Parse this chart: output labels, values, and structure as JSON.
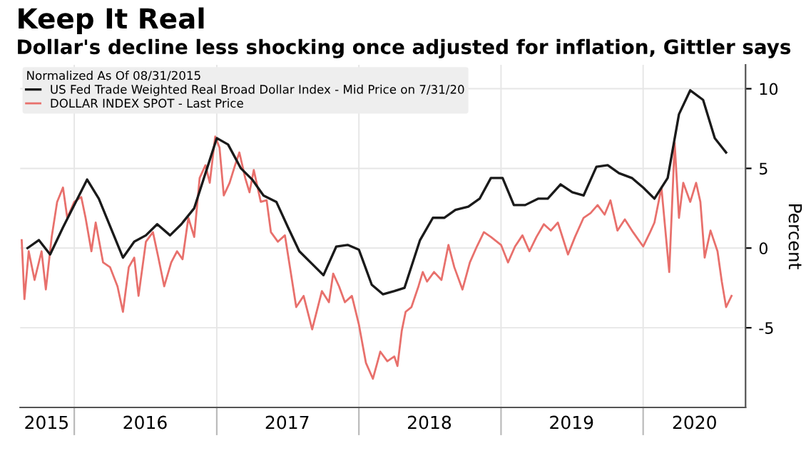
{
  "chart_data": {
    "type": "line",
    "title": "Keep It Real",
    "subtitle": "Dollar's decline less shocking once adjusted for inflation, Gittler says",
    "ylabel": "Percent",
    "legend_title": "Normalized As Of 08/31/2015",
    "legend": "top left",
    "grid": true,
    "xlim": [
      "2015-08-15",
      "2020-09-20"
    ],
    "ylim": [
      -10,
      11.5
    ],
    "yticks": [
      -5,
      0,
      5,
      10
    ],
    "xticks": [
      {
        "value": "2015-10-22",
        "label": "2015"
      },
      {
        "value": "2016-01-01",
        "label": null
      },
      {
        "value": "2016-07-01",
        "label": "2016"
      },
      {
        "value": "2017-01-01",
        "label": null
      },
      {
        "value": "2017-07-01",
        "label": "2017"
      },
      {
        "value": "2018-01-01",
        "label": null
      },
      {
        "value": "2018-07-01",
        "label": "2018"
      },
      {
        "value": "2019-01-01",
        "label": null
      },
      {
        "value": "2019-07-01",
        "label": "2019"
      },
      {
        "value": "2020-01-01",
        "label": null
      },
      {
        "value": "2020-05-12",
        "label": "2020"
      }
    ],
    "series": [
      {
        "name": "US Fed Trade Weighted Real Broad Dollar Index - Mid Price on 7/31/20",
        "color": "#1a1a1a",
        "x": [
          "2015-09-03",
          "2015-10-02",
          "2015-10-31",
          "2015-12-03",
          "2016-02-03",
          "2016-03-04",
          "2016-05-05",
          "2016-06-03",
          "2016-07-03",
          "2016-08-01",
          "2016-09-03",
          "2016-10-02",
          "2016-11-04",
          "2016-12-03",
          "2017-01-01",
          "2017-01-30",
          "2017-03-04",
          "2017-04-02",
          "2017-05-01",
          "2017-06-03",
          "2017-07-03",
          "2017-08-01",
          "2017-09-03",
          "2017-10-02",
          "2017-11-04",
          "2017-12-03",
          "2018-01-01",
          "2018-02-03",
          "2018-03-04",
          "2018-04-02",
          "2018-04-28",
          "2018-06-07",
          "2018-07-10",
          "2018-08-08",
          "2018-09-06",
          "2018-10-09",
          "2018-11-07",
          "2018-12-06",
          "2019-01-05",
          "2019-02-03",
          "2019-03-04",
          "2019-04-06",
          "2019-05-01",
          "2019-06-03",
          "2019-07-03",
          "2019-08-01",
          "2019-09-03",
          "2019-10-02",
          "2019-10-31",
          "2019-12-03",
          "2020-01-01",
          "2020-01-30",
          "2020-03-04",
          "2020-04-02",
          "2020-05-01",
          "2020-06-03",
          "2020-07-03",
          "2020-08-01"
        ],
        "values": [
          0.0,
          0.5,
          -0.4,
          1.3,
          4.3,
          3.1,
          -0.6,
          0.4,
          0.8,
          1.5,
          0.8,
          1.5,
          2.5,
          4.7,
          6.9,
          6.5,
          5.0,
          4.3,
          3.3,
          2.9,
          1.3,
          -0.2,
          -1.0,
          -1.7,
          0.1,
          0.2,
          -0.1,
          -2.3,
          -2.9,
          -2.7,
          -2.5,
          0.5,
          1.9,
          1.9,
          2.4,
          2.6,
          3.1,
          4.4,
          4.4,
          2.7,
          2.7,
          3.1,
          3.1,
          4.0,
          3.5,
          3.3,
          5.1,
          5.2,
          4.7,
          4.4,
          3.8,
          3.1,
          4.4,
          8.4,
          9.9,
          9.3,
          6.9,
          6.0
        ]
      },
      {
        "name": "DOLLAR INDEX SPOT - Last Price",
        "color": "#e8706c",
        "x": [
          "2015-08-19",
          "2015-08-26",
          "2015-09-06",
          "2015-09-21",
          "2015-10-09",
          "2015-10-20",
          "2015-11-04",
          "2015-11-18",
          "2015-12-03",
          "2015-12-14",
          "2016-01-01",
          "2016-01-19",
          "2016-01-30",
          "2016-02-14",
          "2016-02-25",
          "2016-03-15",
          "2016-04-02",
          "2016-04-21",
          "2016-05-05",
          "2016-05-20",
          "2016-06-03",
          "2016-06-14",
          "2016-07-03",
          "2016-07-21",
          "2016-08-04",
          "2016-08-19",
          "2016-09-06",
          "2016-09-21",
          "2016-10-05",
          "2016-10-20",
          "2016-11-04",
          "2016-11-18",
          "2016-12-03",
          "2016-12-14",
          "2016-12-28",
          "2017-01-08",
          "2017-01-19",
          "2017-02-03",
          "2017-02-17",
          "2017-02-28",
          "2017-03-15",
          "2017-03-26",
          "2017-04-06",
          "2017-04-24",
          "2017-05-09",
          "2017-05-20",
          "2017-06-07",
          "2017-06-25",
          "2017-07-06",
          "2017-07-24",
          "2017-08-12",
          "2017-09-03",
          "2017-09-28",
          "2017-10-16",
          "2017-10-27",
          "2017-11-11",
          "2017-11-26",
          "2017-12-14",
          "2018-01-01",
          "2018-01-19",
          "2018-02-06",
          "2018-02-25",
          "2018-03-15",
          "2018-04-02",
          "2018-04-10",
          "2018-04-21",
          "2018-05-01",
          "2018-05-16",
          "2018-06-03",
          "2018-06-14",
          "2018-06-25",
          "2018-07-13",
          "2018-08-01",
          "2018-08-19",
          "2018-09-03",
          "2018-09-24",
          "2018-10-13",
          "2018-10-31",
          "2018-11-18",
          "2018-12-06",
          "2019-01-01",
          "2019-01-19",
          "2019-02-06",
          "2019-02-25",
          "2019-03-15",
          "2019-04-02",
          "2019-04-21",
          "2019-05-09",
          "2019-05-27",
          "2019-06-22",
          "2019-07-10",
          "2019-08-01",
          "2019-08-19",
          "2019-09-06",
          "2019-09-24",
          "2019-10-09",
          "2019-10-27",
          "2019-11-15",
          "2019-12-06",
          "2020-01-01",
          "2020-01-19",
          "2020-01-30",
          "2020-02-17",
          "2020-03-08",
          "2020-03-22",
          "2020-04-02",
          "2020-04-13",
          "2020-05-01",
          "2020-05-16",
          "2020-05-27",
          "2020-06-07",
          "2020-06-22",
          "2020-07-10",
          "2020-07-21",
          "2020-08-01",
          "2020-08-15"
        ],
        "values": [
          0.5,
          -3.2,
          -0.2,
          -2.0,
          -0.2,
          -2.6,
          0.7,
          2.9,
          3.8,
          1.9,
          2.9,
          3.2,
          1.9,
          -0.2,
          1.6,
          -0.9,
          -1.2,
          -2.4,
          -4.0,
          -1.2,
          -0.6,
          -3.0,
          0.4,
          1.0,
          -0.6,
          -2.4,
          -0.9,
          -0.2,
          -0.7,
          1.9,
          0.7,
          4.4,
          5.2,
          4.1,
          7.0,
          6.3,
          3.3,
          4.1,
          5.2,
          6.0,
          4.4,
          3.5,
          4.9,
          2.9,
          3.0,
          1.0,
          0.4,
          0.8,
          -0.9,
          -3.7,
          -3.0,
          -5.1,
          -2.7,
          -3.4,
          -1.6,
          -2.4,
          -3.4,
          -3.0,
          -4.8,
          -7.2,
          -8.2,
          -6.5,
          -7.1,
          -6.8,
          -7.4,
          -5.2,
          -4.0,
          -3.7,
          -2.4,
          -1.5,
          -2.1,
          -1.5,
          -2.0,
          0.2,
          -1.2,
          -2.6,
          -0.9,
          0.1,
          1.0,
          0.7,
          0.2,
          -0.9,
          0.1,
          0.8,
          -0.2,
          0.7,
          1.5,
          1.1,
          1.6,
          -0.4,
          0.7,
          1.9,
          2.2,
          2.7,
          2.1,
          3.0,
          1.1,
          1.8,
          1.0,
          0.1,
          1.0,
          1.6,
          3.8,
          -1.5,
          6.6,
          1.9,
          4.1,
          2.9,
          4.1,
          2.9,
          -0.6,
          1.1,
          -0.2,
          -2.1,
          -3.7,
          -3.0
        ]
      }
    ]
  }
}
